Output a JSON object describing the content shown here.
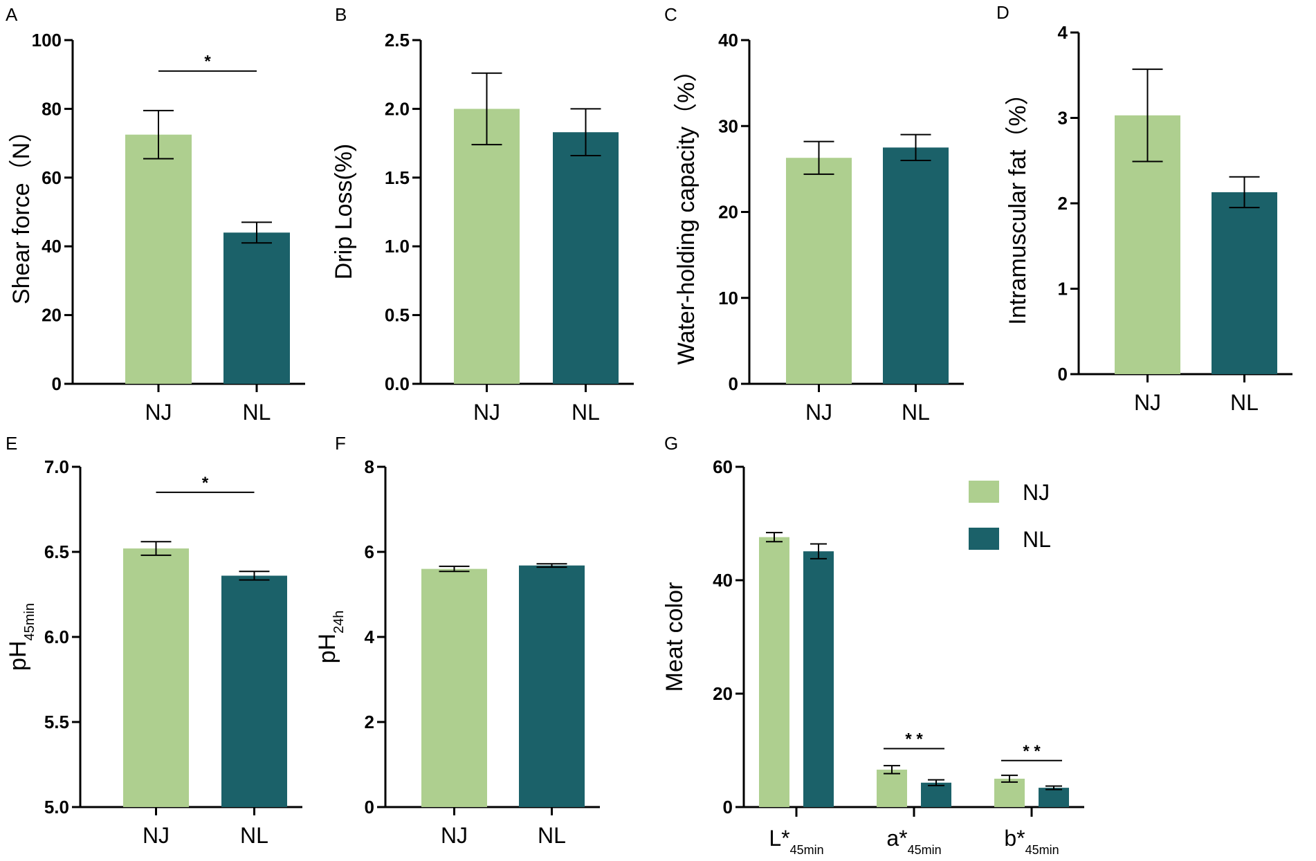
{
  "colors": {
    "NJ": "#aecf8f",
    "NL": "#1b6169",
    "axis": "#000000"
  },
  "chart_data": [
    {
      "id": "A",
      "panel_label": "A",
      "type": "bar",
      "ylabel": "Shear force（N）",
      "ylim": [
        0,
        100
      ],
      "yticks": [
        "0",
        "20",
        "40",
        "60",
        "80",
        "100"
      ],
      "categories": [
        "NJ",
        "NL"
      ],
      "values": [
        72.5,
        44.0
      ],
      "errors": [
        7.0,
        3.0
      ],
      "significance": {
        "label": "*",
        "y": 91
      }
    },
    {
      "id": "B",
      "panel_label": "B",
      "type": "bar",
      "ylabel": "Drip Loss(%)",
      "ylim": [
        0,
        2.5
      ],
      "yticks": [
        "0.0",
        "0.5",
        "1.0",
        "1.5",
        "2.0",
        "2.5"
      ],
      "categories": [
        "NJ",
        "NL"
      ],
      "values": [
        2.0,
        1.83
      ],
      "errors": [
        0.26,
        0.17
      ]
    },
    {
      "id": "C",
      "panel_label": "C",
      "type": "bar",
      "ylabel": "Water-holding capacity（%）",
      "ylim": [
        0,
        40
      ],
      "yticks": [
        "0",
        "10",
        "20",
        "30",
        "40"
      ],
      "categories": [
        "NJ",
        "NL"
      ],
      "values": [
        26.3,
        27.5
      ],
      "errors": [
        1.9,
        1.5
      ]
    },
    {
      "id": "D",
      "panel_label": "D",
      "type": "bar",
      "ylabel": "Intramuscular fat（%）",
      "ylim": [
        0,
        4
      ],
      "yticks": [
        "0",
        "1",
        "2",
        "3",
        "4"
      ],
      "categories": [
        "NJ",
        "NL"
      ],
      "values": [
        3.03,
        2.13
      ],
      "errors": [
        0.54,
        0.18
      ]
    },
    {
      "id": "E",
      "panel_label": "E",
      "type": "bar",
      "ylabel_main": "pH",
      "ylabel_sub": "45min",
      "ylim": [
        5.0,
        7.0
      ],
      "yticks": [
        "5.0",
        "5.5",
        "6.0",
        "6.5",
        "7.0"
      ],
      "categories": [
        "NJ",
        "NL"
      ],
      "values": [
        6.52,
        6.36
      ],
      "errors": [
        0.04,
        0.025
      ],
      "significance": {
        "label": "*",
        "y": 6.85
      }
    },
    {
      "id": "F",
      "panel_label": "F",
      "type": "bar",
      "ylabel_main": "pH",
      "ylabel_sub": "24h",
      "ylim": [
        0,
        8
      ],
      "yticks": [
        "0",
        "2",
        "4",
        "6",
        "8"
      ],
      "categories": [
        "NJ",
        "NL"
      ],
      "values": [
        5.6,
        5.68
      ],
      "errors": [
        0.06,
        0.04
      ]
    },
    {
      "id": "G",
      "panel_label": "G",
      "type": "bar",
      "ylabel": "Meat color",
      "ylim": [
        0,
        60
      ],
      "yticks": [
        "0",
        "20",
        "40",
        "60"
      ],
      "categories": [
        {
          "main": "L*",
          "sub": "45min"
        },
        {
          "main": "a*",
          "sub": "45min"
        },
        {
          "main": "b*",
          "sub": "45min"
        }
      ],
      "series": [
        {
          "name": "NJ",
          "values": [
            47.6,
            6.6,
            5.0
          ],
          "errors": [
            0.8,
            0.7,
            0.6
          ]
        },
        {
          "name": "NL",
          "values": [
            45.1,
            4.3,
            3.4
          ],
          "errors": [
            1.3,
            0.5,
            0.3
          ]
        }
      ],
      "significance": [
        {
          "group": 1,
          "label": "* *",
          "y": 10.3
        },
        {
          "group": 2,
          "label": "* *",
          "y": 8.2
        }
      ],
      "legend": [
        "NJ",
        "NL"
      ]
    }
  ]
}
